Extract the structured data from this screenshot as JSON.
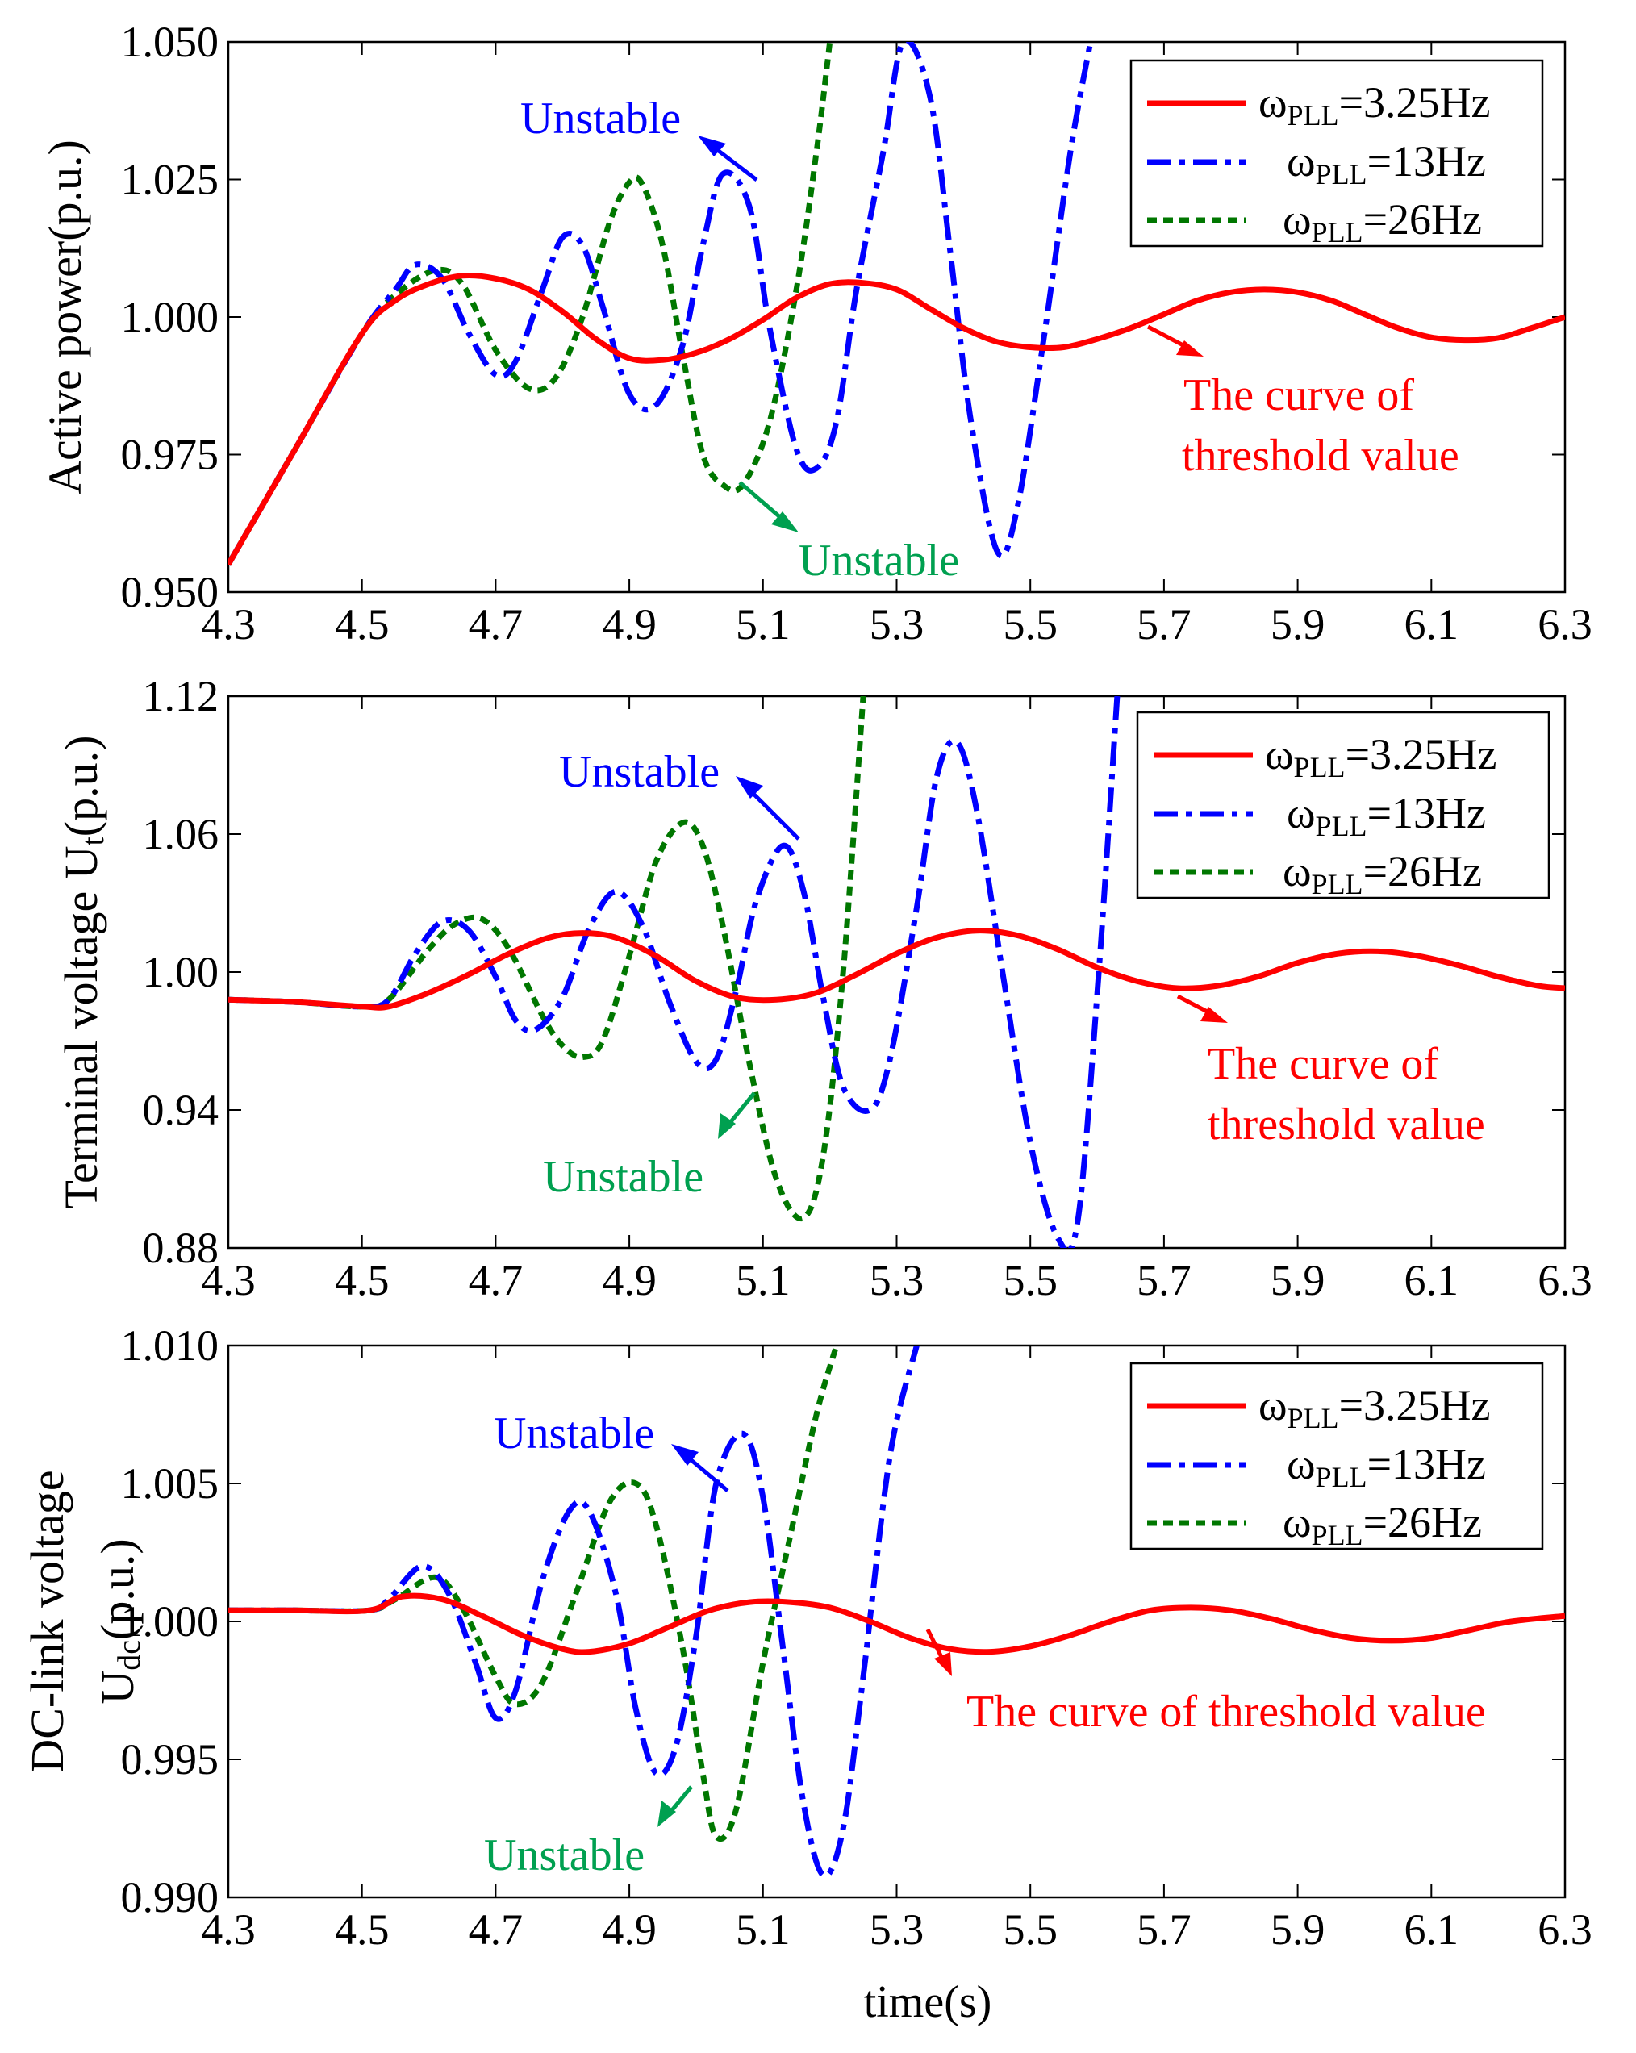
{
  "chart_data": [
    {
      "type": "line",
      "ylabel": "Active power(p.u.)",
      "xlabel": "",
      "xlim": [
        4.3,
        6.3
      ],
      "ylim": [
        0.95,
        1.05
      ],
      "xticks": [
        "4.3",
        "4.5",
        "4.7",
        "4.9",
        "5.1",
        "5.3",
        "5.5",
        "5.7",
        "5.9",
        "6.1",
        "6.3"
      ],
      "yticks": [
        "0.950",
        "0.975",
        "1.000",
        "1.025",
        "1.050"
      ],
      "grid": false,
      "legend_position": "top-right",
      "series": [
        {
          "name": "3.25Hz",
          "color": "#ff0000",
          "style": "solid",
          "x": [
            4.3,
            4.4,
            4.5,
            4.55,
            4.6,
            4.65,
            4.7,
            4.75,
            4.8,
            4.85,
            4.9,
            4.95,
            5.0,
            5.05,
            5.1,
            5.15,
            5.2,
            5.25,
            5.3,
            5.35,
            5.4,
            5.45,
            5.5,
            5.55,
            5.6,
            5.65,
            5.7,
            5.75,
            5.8,
            5.85,
            5.9,
            5.95,
            6.0,
            6.05,
            6.1,
            6.15,
            6.2,
            6.25,
            6.3
          ],
          "y": [
            0.955,
            0.976,
            0.997,
            1.003,
            1.006,
            1.0075,
            1.007,
            1.005,
            1.001,
            0.996,
            0.9925,
            0.9922,
            0.9935,
            0.996,
            0.9995,
            1.0035,
            1.006,
            1.0062,
            1.005,
            1.0015,
            0.998,
            0.9955,
            0.9945,
            0.9945,
            0.996,
            0.998,
            1.0005,
            1.003,
            1.0045,
            1.005,
            1.0045,
            1.003,
            1.0005,
            0.998,
            0.9963,
            0.9958,
            0.9962,
            0.998,
            1.0
          ]
        },
        {
          "name": "13Hz",
          "color": "#0000ff",
          "style": "dashdot",
          "x": [
            4.3,
            4.4,
            4.5,
            4.55,
            4.58,
            4.62,
            4.66,
            4.7,
            4.73,
            4.77,
            4.8,
            4.83,
            4.86,
            4.9,
            4.94,
            4.98,
            5.01,
            5.04,
            5.08,
            5.11,
            5.15,
            5.18,
            5.21,
            5.24,
            5.28,
            5.31,
            5.35,
            5.38,
            5.41,
            5.45,
            5.48,
            5.52,
            5.56,
            5.59
          ],
          "y": [
            0.955,
            0.976,
            0.997,
            1.005,
            1.0095,
            1.007,
            0.997,
            0.9895,
            0.992,
            1.005,
            1.0145,
            1.013,
            1.002,
            0.986,
            0.984,
            0.995,
            1.013,
            1.026,
            1.02,
            0.998,
            0.976,
            0.9725,
            0.981,
            1.005,
            1.03,
            1.05,
            1.04,
            1.012,
            0.982,
            0.9575,
            0.965,
            0.996,
            1.03,
            1.05
          ]
        },
        {
          "name": "26Hz",
          "color": "#007700",
          "style": "dashed",
          "x": [
            4.3,
            4.4,
            4.5,
            4.55,
            4.61,
            4.65,
            4.7,
            4.75,
            4.79,
            4.83,
            4.87,
            4.9,
            4.92,
            4.95,
            4.98,
            5.01,
            5.04,
            5.07,
            5.11,
            5.15,
            5.18,
            5.2
          ],
          "y": [
            0.955,
            0.976,
            0.997,
            1.004,
            1.0085,
            1.006,
            0.994,
            0.987,
            0.989,
            1.0,
            1.017,
            1.0245,
            1.024,
            1.013,
            0.993,
            0.975,
            0.9695,
            0.9695,
            0.981,
            1.005,
            1.03,
            1.05
          ]
        }
      ],
      "annotations": [
        {
          "text": "Unstable",
          "color": "#0000ff"
        },
        {
          "text": "Unstable",
          "color": "#00a050"
        },
        {
          "text": "The curve of",
          "color": "#ff0000"
        },
        {
          "text": "threshold value",
          "color": "#ff0000"
        }
      ]
    },
    {
      "type": "line",
      "ylabel": "Terminal voltage U",
      "ylabel_sub": "t",
      "ylabel_suffix": "(p.u.)",
      "xlabel": "",
      "xlim": [
        4.3,
        6.3
      ],
      "ylim": [
        0.88,
        1.12
      ],
      "xticks": [
        "4.3",
        "4.5",
        "4.7",
        "4.9",
        "5.1",
        "5.3",
        "5.5",
        "5.7",
        "5.9",
        "6.1",
        "6.3"
      ],
      "yticks": [
        "0.88",
        "0.94",
        "1.00",
        "1.06",
        "1.12"
      ],
      "grid": false,
      "legend_position": "top-right",
      "series": [
        {
          "name": "3.25Hz",
          "color": "#ff0000",
          "style": "solid",
          "x": [
            4.3,
            4.4,
            4.5,
            4.54,
            4.6,
            4.66,
            4.72,
            4.78,
            4.83,
            4.88,
            4.94,
            5.0,
            5.06,
            5.12,
            5.18,
            5.24,
            5.3,
            5.36,
            5.42,
            5.48,
            5.54,
            5.6,
            5.66,
            5.72,
            5.78,
            5.84,
            5.9,
            5.96,
            6.02,
            6.08,
            6.14,
            6.2,
            6.26,
            6.3
          ],
          "y": [
            0.988,
            0.987,
            0.985,
            0.985,
            0.991,
            0.999,
            1.008,
            1.015,
            1.017,
            1.015,
            1.007,
            0.996,
            0.989,
            0.988,
            0.991,
            0.999,
            1.008,
            1.015,
            1.018,
            1.016,
            1.01,
            1.002,
            0.996,
            0.993,
            0.994,
            0.998,
            1.004,
            1.008,
            1.009,
            1.007,
            1.003,
            0.998,
            0.994,
            0.993
          ]
        },
        {
          "name": "13Hz",
          "color": "#0000ff",
          "style": "dashdot",
          "x": [
            4.3,
            4.4,
            4.5,
            4.54,
            4.58,
            4.62,
            4.66,
            4.7,
            4.73,
            4.76,
            4.8,
            4.84,
            4.88,
            4.92,
            4.96,
            5.0,
            5.03,
            5.06,
            5.09,
            5.13,
            5.16,
            5.19,
            5.22,
            5.26,
            5.29,
            5.33,
            5.36,
            5.39,
            5.42,
            5.46,
            5.5,
            5.54,
            5.57,
            5.6,
            5.63
          ],
          "y": [
            0.988,
            0.987,
            0.985,
            0.988,
            1.008,
            1.022,
            1.018,
            0.998,
            0.979,
            0.975,
            0.989,
            1.019,
            1.035,
            1.02,
            0.987,
            0.961,
            0.962,
            0.992,
            1.031,
            1.055,
            1.036,
            0.989,
            0.95,
            0.94,
            0.962,
            1.028,
            1.085,
            1.1,
            1.07,
            0.997,
            0.926,
            0.885,
            0.89,
            0.99,
            1.12
          ]
        },
        {
          "name": "26Hz",
          "color": "#007700",
          "style": "dashed",
          "x": [
            4.3,
            4.4,
            4.5,
            4.54,
            4.6,
            4.64,
            4.68,
            4.72,
            4.77,
            4.8,
            4.83,
            4.86,
            4.9,
            4.94,
            4.98,
            5.01,
            5.04,
            5.08,
            5.12,
            5.16,
            5.19,
            5.22,
            5.25
          ],
          "y": [
            0.988,
            0.987,
            0.985,
            0.988,
            1.01,
            1.021,
            1.023,
            1.01,
            0.981,
            0.968,
            0.963,
            0.97,
            1.007,
            1.048,
            1.065,
            1.055,
            1.02,
            0.96,
            0.91,
            0.893,
            0.92,
            1.0,
            1.12
          ]
        }
      ],
      "annotations": [
        {
          "text": "Unstable",
          "color": "#0000ff"
        },
        {
          "text": "Unstable",
          "color": "#00a050"
        },
        {
          "text": "The curve of",
          "color": "#ff0000"
        },
        {
          "text": "threshold value",
          "color": "#ff0000"
        }
      ]
    },
    {
      "type": "line",
      "ylabel": "DC-link voltage",
      "ylabel2": "U",
      "ylabel2_sub": "dc",
      "ylabel2_suffix": "(p.u.)",
      "xlabel": "time(s)",
      "xlim": [
        4.3,
        6.3
      ],
      "ylim": [
        0.99,
        1.01
      ],
      "xticks": [
        "4.3",
        "4.5",
        "4.7",
        "4.9",
        "5.1",
        "5.3",
        "5.5",
        "5.7",
        "5.9",
        "6.1",
        "6.3"
      ],
      "yticks": [
        "0.990",
        "0.995",
        "1.000",
        "1.005",
        "1.010"
      ],
      "grid": false,
      "legend_position": "top-right",
      "series": [
        {
          "name": "3.25Hz",
          "color": "#ff0000",
          "style": "solid",
          "x": [
            4.3,
            4.4,
            4.51,
            4.56,
            4.62,
            4.68,
            4.74,
            4.8,
            4.84,
            4.9,
            4.96,
            5.02,
            5.08,
            5.14,
            5.2,
            5.26,
            5.32,
            5.38,
            5.44,
            5.5,
            5.56,
            5.62,
            5.68,
            5.74,
            5.8,
            5.86,
            5.92,
            5.98,
            6.04,
            6.1,
            6.16,
            6.22,
            6.3
          ],
          "y": [
            1.0004,
            1.0004,
            1.0004,
            1.0009,
            1.0008,
            1.0002,
            0.9995,
            0.999,
            0.9989,
            0.9992,
            0.9998,
            1.0004,
            1.0007,
            1.0007,
            1.0005,
            1.0,
            0.9994,
            0.999,
            0.9989,
            0.9991,
            0.9995,
            1.0,
            1.0004,
            1.0005,
            1.0004,
            1.0001,
            0.9997,
            0.9994,
            0.9993,
            0.9994,
            0.9997,
            1.0,
            1.0002
          ]
        },
        {
          "name": "13Hz",
          "color": "#0000ff",
          "style": "dashdot",
          "x": [
            4.3,
            4.4,
            4.51,
            4.54,
            4.59,
            4.63,
            4.67,
            4.7,
            4.73,
            4.77,
            4.81,
            4.84,
            4.88,
            4.91,
            4.94,
            4.97,
            5.0,
            5.03,
            5.07,
            5.1,
            5.13,
            5.16,
            5.19,
            5.22,
            5.25,
            5.29,
            5.33
          ],
          "y": [
            1.0004,
            1.0004,
            1.0004,
            1.0008,
            1.002,
            1.001,
            0.9985,
            0.9965,
            0.9975,
            1.0015,
            1.004,
            1.004,
            1.001,
            0.9968,
            0.9945,
            0.9955,
            0.9995,
            1.005,
            1.0068,
            1.0045,
            0.999,
            0.9935,
            0.9908,
            0.9925,
            0.998,
            1.006,
            1.01
          ]
        },
        {
          "name": "26Hz",
          "color": "#007700",
          "style": "dashed",
          "x": [
            4.3,
            4.4,
            4.51,
            4.55,
            4.61,
            4.65,
            4.7,
            4.73,
            4.77,
            4.82,
            4.87,
            4.91,
            4.94,
            4.98,
            5.01,
            5.03,
            5.06,
            5.1,
            5.14,
            5.18,
            5.21
          ],
          "y": [
            1.0004,
            1.0004,
            1.0004,
            1.0008,
            1.0016,
            1.0005,
            0.998,
            0.997,
            0.9978,
            1.001,
            1.0043,
            1.005,
            1.0035,
            0.999,
            0.9945,
            0.9922,
            0.9932,
            0.9985,
            1.003,
            1.0075,
            1.01
          ]
        }
      ],
      "annotations": [
        {
          "text": "Unstable",
          "color": "#0000ff"
        },
        {
          "text": "Unstable",
          "color": "#00a050"
        },
        {
          "text": "The curve of threshold value",
          "color": "#ff0000"
        }
      ]
    }
  ],
  "legend": {
    "omega": "ω",
    "sub": "PLL",
    "prefix": "="
  }
}
